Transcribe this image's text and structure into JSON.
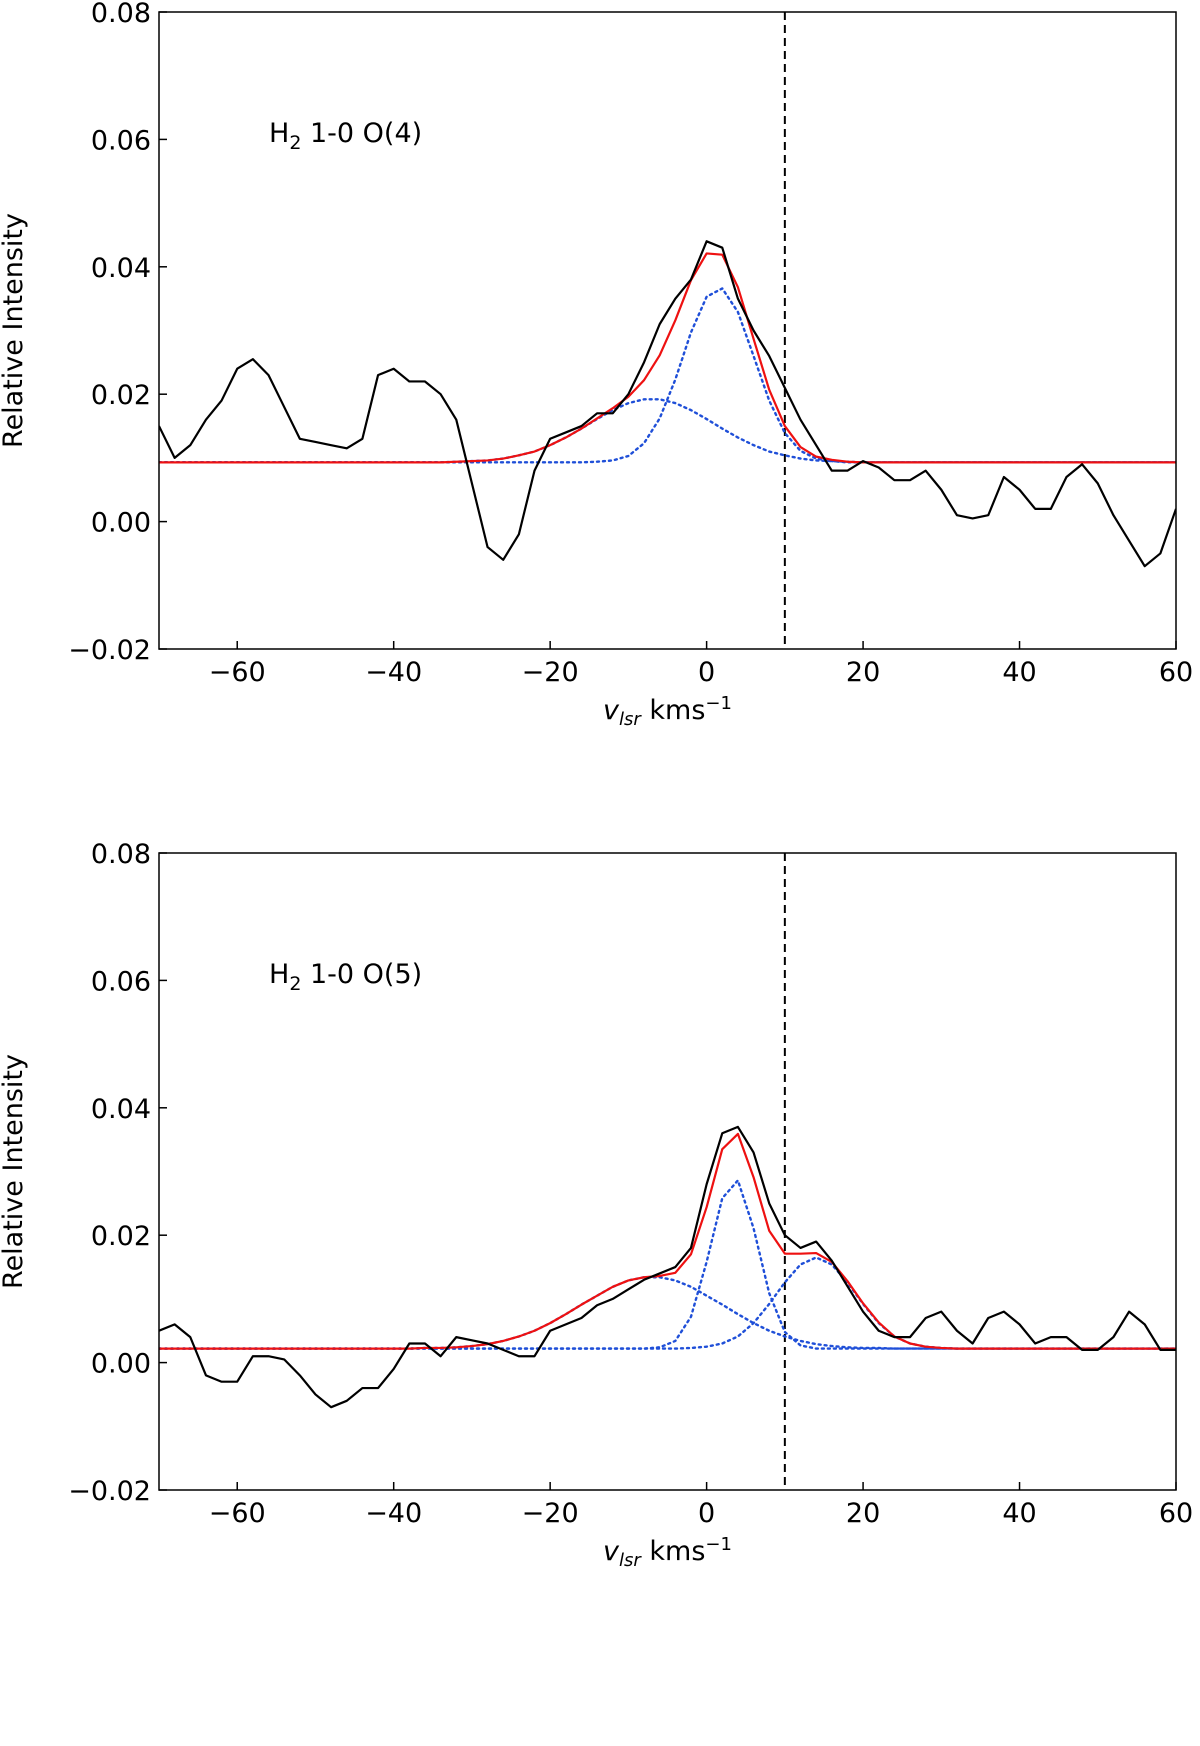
{
  "chart_data": [
    {
      "type": "line",
      "ylabel": "Relative Intensity",
      "xlabel": {
        "base": "v",
        "sub": "lsr",
        "text": " kms",
        "sup": "−1"
      },
      "annotation": {
        "text": "H",
        "sub": "2",
        "rest": " 1-0 O(4)"
      },
      "xlim": [
        -70,
        60
      ],
      "xticks": [
        {
          "value": -60,
          "label": "−60"
        },
        {
          "value": -40,
          "label": "−40"
        },
        {
          "value": -20,
          "label": "−20"
        },
        0,
        20,
        40,
        60
      ],
      "ylim": [
        -0.02,
        0.08
      ],
      "yticks": [
        {
          "value": -0.02,
          "label": "−0.02"
        },
        {
          "value": 0,
          "label": "0.00"
        },
        0.02,
        0.04,
        0.06,
        0.08
      ],
      "vline": 10,
      "x": [
        -70,
        -68,
        -66,
        -64,
        -62,
        -60,
        -58,
        -56,
        -54,
        -52,
        -50,
        -48,
        -46,
        -44,
        -42,
        -40,
        -38,
        -36,
        -34,
        -32,
        -30,
        -28,
        -26,
        -24,
        -22,
        -20,
        -18,
        -16,
        -14,
        -12,
        -10,
        -8,
        -6,
        -4,
        -2,
        0,
        2,
        4,
        6,
        8,
        10,
        12,
        14,
        16,
        18,
        20,
        22,
        24,
        26,
        28,
        30,
        32,
        34,
        36,
        38,
        40,
        42,
        44,
        46,
        48,
        50,
        52,
        54,
        56,
        58,
        60
      ],
      "series": [
        {
          "color": "#1f4fd8",
          "style": "dotted",
          "values": [
            0.0093,
            0.0093,
            0.0093,
            0.0093,
            0.0093,
            0.0093,
            0.0093,
            0.0093,
            0.0093,
            0.0093,
            0.0093,
            0.0093,
            0.0093,
            0.0093,
            0.0093,
            0.0093,
            0.0093,
            0.0093,
            0.0093,
            0.0093,
            0.0093,
            0.0093,
            0.0093,
            0.0093,
            0.0093,
            0.0093,
            0.0093,
            0.0093,
            0.0094,
            0.0096,
            0.0103,
            0.0123,
            0.0162,
            0.0223,
            0.0297,
            0.0353,
            0.0366,
            0.0329,
            0.026,
            0.019,
            0.0139,
            0.0111,
            0.0099,
            0.0095,
            0.0093,
            0.0093,
            0.0093,
            0.0093,
            0.0093,
            0.0093,
            0.0093,
            0.0093,
            0.0093,
            0.0093,
            0.0093,
            0.0093,
            0.0093,
            0.0093,
            0.0093,
            0.0093,
            0.0093,
            0.0093,
            0.0093,
            0.0093,
            0.0093,
            0.0093
          ]
        },
        {
          "color": "#1f4fd8",
          "style": "dotted",
          "values": [
            0.0093,
            0.0093,
            0.0093,
            0.0093,
            0.0093,
            0.0093,
            0.0093,
            0.0093,
            0.0093,
            0.0093,
            0.0093,
            0.0093,
            0.0093,
            0.0093,
            0.0093,
            0.0093,
            0.0093,
            0.0093,
            0.0093,
            0.0094,
            0.0095,
            0.0096,
            0.0099,
            0.0104,
            0.011,
            0.012,
            0.0132,
            0.0146,
            0.0161,
            0.0175,
            0.0186,
            0.0192,
            0.0192,
            0.0186,
            0.0175,
            0.0161,
            0.0146,
            0.0132,
            0.012,
            0.011,
            0.0104,
            0.0099,
            0.0096,
            0.0095,
            0.0094,
            0.0093,
            0.0093,
            0.0093,
            0.0093,
            0.0093,
            0.0093,
            0.0093,
            0.0093,
            0.0093,
            0.0093,
            0.0093,
            0.0093,
            0.0093,
            0.0093,
            0.0093,
            0.0093,
            0.0093,
            0.0093,
            0.0093,
            0.0093,
            0.0093
          ]
        },
        {
          "color": "#ee1111",
          "style": "solid",
          "values": [
            0.0093,
            0.0093,
            0.0093,
            0.0093,
            0.0093,
            0.0093,
            0.0093,
            0.0093,
            0.0093,
            0.0093,
            0.0093,
            0.0093,
            0.0093,
            0.0093,
            0.0093,
            0.0093,
            0.0093,
            0.0093,
            0.0093,
            0.0094,
            0.0095,
            0.0096,
            0.0099,
            0.0104,
            0.011,
            0.012,
            0.0132,
            0.0146,
            0.0162,
            0.0178,
            0.0196,
            0.0222,
            0.0261,
            0.0316,
            0.0379,
            0.0421,
            0.0419,
            0.0368,
            0.0287,
            0.0207,
            0.015,
            0.0117,
            0.0102,
            0.0097,
            0.0094,
            0.0093,
            0.0093,
            0.0093,
            0.0093,
            0.0093,
            0.0093,
            0.0093,
            0.0093,
            0.0093,
            0.0093,
            0.0093,
            0.0093,
            0.0093,
            0.0093,
            0.0093,
            0.0093,
            0.0093,
            0.0093,
            0.0093,
            0.0093,
            0.0093
          ]
        },
        {
          "color": "#000000",
          "style": "solid",
          "values": [
            0.015,
            0.01,
            0.012,
            0.016,
            0.019,
            0.024,
            0.0255,
            0.023,
            0.018,
            0.013,
            0.0125,
            0.012,
            0.0115,
            0.013,
            0.023,
            0.024,
            0.022,
            0.022,
            0.02,
            0.016,
            0.006,
            -0.004,
            -0.006,
            -0.002,
            0.008,
            0.013,
            0.014,
            0.015,
            0.017,
            0.017,
            0.02,
            0.025,
            0.031,
            0.035,
            0.038,
            0.044,
            0.043,
            0.035,
            0.03,
            0.026,
            0.021,
            0.016,
            0.012,
            0.008,
            0.008,
            0.0095,
            0.0085,
            0.0065,
            0.0065,
            0.008,
            0.005,
            0.001,
            0.0005,
            0.001,
            0.007,
            0.005,
            0.002,
            0.002,
            0.007,
            0.009,
            0.006,
            0.001,
            -0.003,
            -0.007,
            -0.005,
            0.002
          ]
        }
      ]
    },
    {
      "type": "line",
      "ylabel": "Relative Intensity",
      "xlabel": {
        "base": "v",
        "sub": "lsr",
        "text": " kms",
        "sup": "−1"
      },
      "annotation": {
        "text": "H",
        "sub": "2",
        "rest": " 1-0 O(5)"
      },
      "xlim": [
        -70,
        60
      ],
      "xticks": [
        {
          "value": -60,
          "label": "−60"
        },
        {
          "value": -40,
          "label": "−40"
        },
        {
          "value": -20,
          "label": "−20"
        },
        0,
        20,
        40,
        60
      ],
      "ylim": [
        -0.02,
        0.08
      ],
      "yticks": [
        {
          "value": -0.02,
          "label": "−0.02"
        },
        {
          "value": 0,
          "label": "0.00"
        },
        0.02,
        0.04,
        0.06,
        0.08
      ],
      "vline": 10,
      "x": [
        -70,
        -68,
        -66,
        -64,
        -62,
        -60,
        -58,
        -56,
        -54,
        -52,
        -50,
        -48,
        -46,
        -44,
        -42,
        -40,
        -38,
        -36,
        -34,
        -32,
        -30,
        -28,
        -26,
        -24,
        -22,
        -20,
        -18,
        -16,
        -14,
        -12,
        -10,
        -8,
        -6,
        -4,
        -2,
        0,
        2,
        4,
        6,
        8,
        10,
        12,
        14,
        16,
        18,
        20,
        22,
        24,
        26,
        28,
        30,
        32,
        34,
        36,
        38,
        40,
        42,
        44,
        46,
        48,
        50,
        52,
        54,
        56,
        58,
        60
      ],
      "series": [
        {
          "color": "#1f4fd8",
          "style": "dotted",
          "values": [
            0.0022,
            0.0022,
            0.0022,
            0.0022,
            0.0022,
            0.0022,
            0.0022,
            0.0022,
            0.0022,
            0.0022,
            0.0022,
            0.0022,
            0.0022,
            0.0022,
            0.0022,
            0.0022,
            0.0022,
            0.0023,
            0.0023,
            0.0024,
            0.0026,
            0.0029,
            0.0034,
            0.0041,
            0.005,
            0.0062,
            0.0076,
            0.0091,
            0.0105,
            0.0119,
            0.0129,
            0.0134,
            0.0134,
            0.0129,
            0.0119,
            0.0105,
            0.0091,
            0.0076,
            0.0062,
            0.005,
            0.0041,
            0.0034,
            0.0029,
            0.0026,
            0.0024,
            0.0023,
            0.0023,
            0.0022,
            0.0022,
            0.0022,
            0.0022,
            0.0022,
            0.0022,
            0.0022,
            0.0022,
            0.0022,
            0.0022,
            0.0022,
            0.0022,
            0.0022,
            0.0022,
            0.0022,
            0.0022,
            0.0022,
            0.0022,
            0.0022
          ]
        },
        {
          "color": "#1f4fd8",
          "style": "dotted",
          "values": [
            0.0022,
            0.0022,
            0.0022,
            0.0022,
            0.0022,
            0.0022,
            0.0022,
            0.0022,
            0.0022,
            0.0022,
            0.0022,
            0.0022,
            0.0022,
            0.0022,
            0.0022,
            0.0022,
            0.0022,
            0.0022,
            0.0022,
            0.0022,
            0.0022,
            0.0022,
            0.0022,
            0.0022,
            0.0022,
            0.0022,
            0.0022,
            0.0022,
            0.0022,
            0.0022,
            0.0022,
            0.0022,
            0.0024,
            0.0034,
            0.0072,
            0.0158,
            0.0258,
            0.0286,
            0.0211,
            0.0109,
            0.0048,
            0.0027,
            0.0022,
            0.0022,
            0.0022,
            0.0022,
            0.0022,
            0.0022,
            0.0022,
            0.0022,
            0.0022,
            0.0022,
            0.0022,
            0.0022,
            0.0022,
            0.0022,
            0.0022,
            0.0022,
            0.0022,
            0.0022,
            0.0022,
            0.0022,
            0.0022,
            0.0022,
            0.0022,
            0.0022
          ]
        },
        {
          "color": "#1f4fd8",
          "style": "dotted",
          "values": [
            0.0022,
            0.0022,
            0.0022,
            0.0022,
            0.0022,
            0.0022,
            0.0022,
            0.0022,
            0.0022,
            0.0022,
            0.0022,
            0.0022,
            0.0022,
            0.0022,
            0.0022,
            0.0022,
            0.0022,
            0.0022,
            0.0022,
            0.0022,
            0.0022,
            0.0022,
            0.0022,
            0.0022,
            0.0022,
            0.0022,
            0.0022,
            0.0022,
            0.0022,
            0.0022,
            0.0022,
            0.0022,
            0.0022,
            0.0022,
            0.0023,
            0.0025,
            0.003,
            0.0041,
            0.0062,
            0.0092,
            0.0126,
            0.0154,
            0.0165,
            0.0154,
            0.0126,
            0.0092,
            0.0062,
            0.0041,
            0.003,
            0.0025,
            0.0023,
            0.0022,
            0.0022,
            0.0022,
            0.0022,
            0.0022,
            0.0022,
            0.0022,
            0.0022,
            0.0022,
            0.0022,
            0.0022,
            0.0022,
            0.0022,
            0.0022,
            0.0022
          ]
        },
        {
          "color": "#ee1111",
          "style": "solid",
          "values": [
            0.0022,
            0.0022,
            0.0022,
            0.0022,
            0.0022,
            0.0022,
            0.0022,
            0.0022,
            0.0022,
            0.0022,
            0.0022,
            0.0022,
            0.0022,
            0.0022,
            0.0022,
            0.0022,
            0.0022,
            0.0023,
            0.0023,
            0.0024,
            0.0026,
            0.0029,
            0.0034,
            0.0041,
            0.005,
            0.0062,
            0.0076,
            0.0091,
            0.0105,
            0.0119,
            0.0129,
            0.0134,
            0.0136,
            0.0141,
            0.017,
            0.0244,
            0.0335,
            0.0359,
            0.0291,
            0.0207,
            0.0171,
            0.0171,
            0.0172,
            0.0158,
            0.0128,
            0.0093,
            0.0063,
            0.0041,
            0.003,
            0.0025,
            0.0023,
            0.0022,
            0.0022,
            0.0022,
            0.0022,
            0.0022,
            0.0022,
            0.0022,
            0.0022,
            0.0022,
            0.0022,
            0.0022,
            0.0022,
            0.0022,
            0.0022,
            0.0022
          ]
        },
        {
          "color": "#000000",
          "style": "solid",
          "values": [
            0.005,
            0.006,
            0.004,
            -0.002,
            -0.003,
            -0.003,
            0.001,
            0.001,
            0.0005,
            -0.002,
            -0.005,
            -0.007,
            -0.006,
            -0.004,
            -0.004,
            -0.001,
            0.003,
            0.003,
            0.001,
            0.004,
            0.0035,
            0.003,
            0.002,
            0.001,
            0.001,
            0.005,
            0.006,
            0.007,
            0.009,
            0.01,
            0.0115,
            0.013,
            0.014,
            0.015,
            0.018,
            0.028,
            0.036,
            0.037,
            0.033,
            0.025,
            0.02,
            0.018,
            0.019,
            0.016,
            0.012,
            0.008,
            0.005,
            0.004,
            0.004,
            0.007,
            0.008,
            0.005,
            0.003,
            0.007,
            0.008,
            0.006,
            0.003,
            0.004,
            0.004,
            0.002,
            0.002,
            0.004,
            0.008,
            0.006,
            0.002,
            0.002
          ]
        }
      ]
    }
  ]
}
